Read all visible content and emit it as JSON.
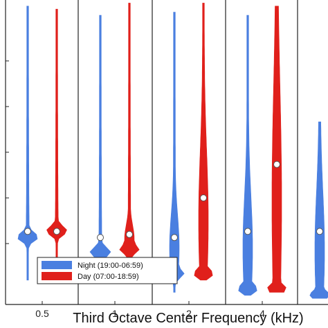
{
  "chart_data": {
    "type": "violin",
    "title": "",
    "xlabel": "Third Octave Center Frequency (kHz)",
    "ylabel": "",
    "categories": [
      "0.5",
      "1",
      "2",
      "4",
      ""
    ],
    "ylim": [
      0,
      100
    ],
    "grid": false,
    "legend_position": "bottom-left",
    "series": [
      {
        "name": "Night (19:00-06:59)",
        "color": "#4a7fe0",
        "violins": [
          {
            "min": 8,
            "max": 98,
            "median": 24,
            "mode": 22,
            "spread": "narrow"
          },
          {
            "min": 7,
            "max": 95,
            "median": 22,
            "mode": 17,
            "spread": "narrow"
          },
          {
            "min": 4,
            "max": 96,
            "median": 22,
            "mode": 10,
            "spread": "wide"
          },
          {
            "min": 3,
            "max": 95,
            "median": 24,
            "mode": 5,
            "spread": "wide"
          },
          {
            "min": 2,
            "max": 60,
            "median": 24,
            "mode": 3,
            "spread": "wide"
          }
        ]
      },
      {
        "name": "Day (07:00-18:59)",
        "color": "#e0201b",
        "violins": [
          {
            "min": 10,
            "max": 97,
            "median": 24,
            "mode": 24,
            "spread": "narrow"
          },
          {
            "min": 9,
            "max": 99,
            "median": 23,
            "mode": 18,
            "spread": "wide"
          },
          {
            "min": 8,
            "max": 99,
            "median": 35,
            "mode": 10,
            "spread": "wide"
          },
          {
            "min": 4,
            "max": 98,
            "median": 46,
            "mode": 5,
            "spread": "wide"
          }
        ]
      }
    ]
  }
}
